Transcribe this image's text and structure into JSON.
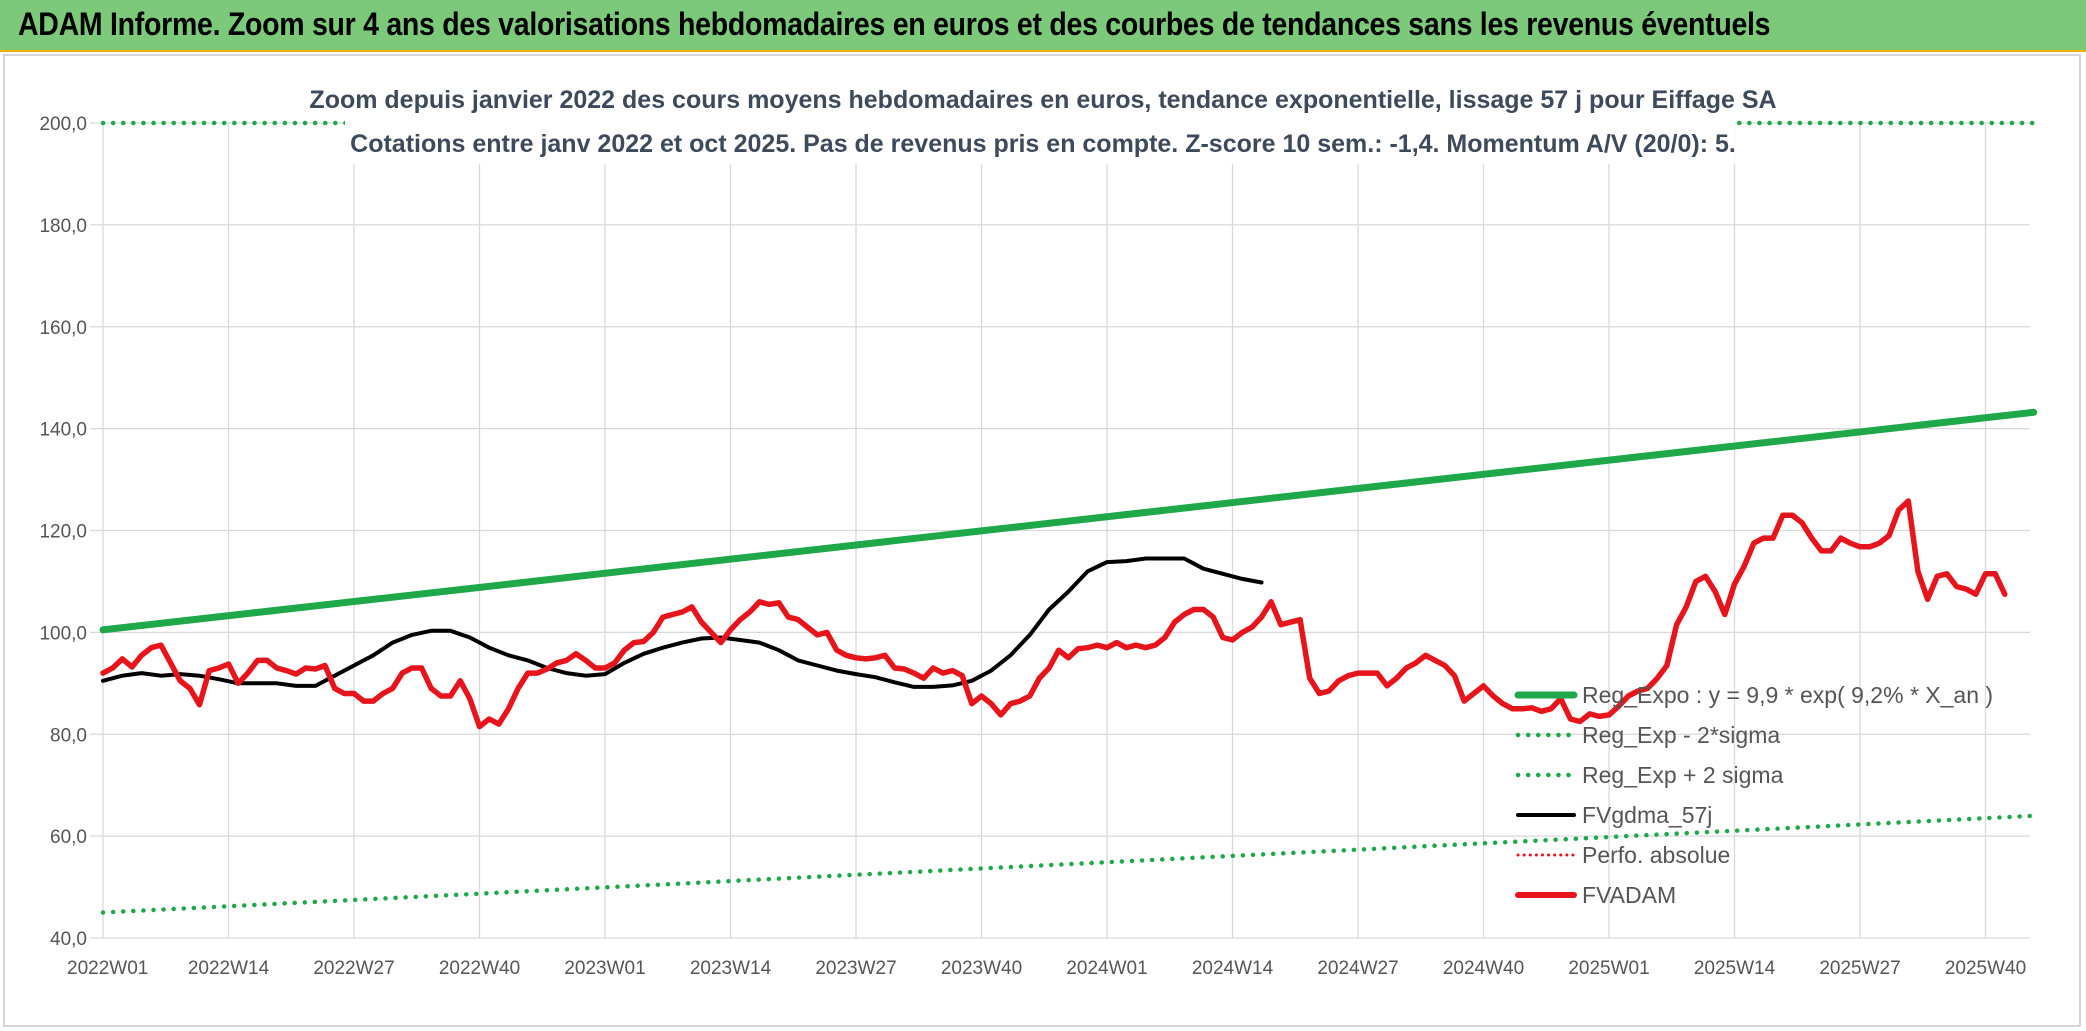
{
  "header": {
    "title": "ADAM Informe. Zoom sur 4 ans des valorisations hebdomadaires en euros et des courbes de tendances sans les revenus éventuels"
  },
  "chart_data": {
    "type": "line",
    "subtitle_lines": [
      "Zoom depuis janvier 2022 des cours moyens hebdomadaires en euros, tendance exponentielle, lissage 57 j pour Eiffage SA",
      "Cotations entre janv 2022 et oct 2025. Pas de revenus pris en compte. Z-score 10 sem.: -1,4. Momentum A/V (20/0): 5."
    ],
    "ylim": [
      40,
      200
    ],
    "ytick_values": [
      40,
      60,
      80,
      100,
      120,
      140,
      160,
      180,
      200
    ],
    "ytick_labels": [
      "40,0",
      "60,0",
      "80,0",
      "100,0",
      "120,0",
      "140,0",
      "160,0",
      "180,0",
      "200,0"
    ],
    "xtick_labels": [
      "2022W01",
      "2022W14",
      "2022W27",
      "2022W40",
      "2023W01",
      "2023W14",
      "2023W27",
      "2023W40",
      "2024W01",
      "2024W14",
      "2024W27",
      "2024W40",
      "2025W01",
      "2025W14",
      "2025W27",
      "2025W40"
    ],
    "xtick_weeks": [
      0,
      13,
      26,
      39,
      52,
      65,
      78,
      91,
      104,
      117,
      130,
      143,
      156,
      169,
      182,
      195
    ],
    "x_range_weeks": [
      0,
      200
    ],
    "grid": true,
    "legend_position": "bottom-right",
    "series": [
      {
        "name": "Reg_Expo : y = 9,9 * exp( 9,2% *  X_an )",
        "color": "#1fa84a",
        "style": "solid",
        "start": [
          0,
          100.5
        ],
        "end": [
          200,
          143.2
        ]
      },
      {
        "name": "Reg_Exp - 2*sigma",
        "color": "#1fa84a",
        "style": "dotted",
        "start": [
          0,
          45.0
        ],
        "end": [
          200,
          64.0
        ]
      },
      {
        "name": "Reg_Exp + 2 sigma",
        "color": "#1fa84a",
        "style": "dotted",
        "start": [
          0,
          200.0
        ],
        "end": [
          200,
          200.0
        ]
      },
      {
        "name": "FVgdma_57j",
        "color": "#000000",
        "style": "solid",
        "points": [
          [
            0,
            90.5
          ],
          [
            4,
            91.5
          ],
          [
            8,
            92.0
          ],
          [
            12,
            91.5
          ],
          [
            16,
            91.8
          ],
          [
            20,
            91.5
          ],
          [
            24,
            90.8
          ],
          [
            28,
            90.0
          ],
          [
            32,
            90.0
          ],
          [
            36,
            90.0
          ],
          [
            40,
            89.5
          ],
          [
            44,
            89.5
          ],
          [
            48,
            91.5
          ],
          [
            52,
            93.5
          ],
          [
            56,
            95.5
          ],
          [
            60,
            98.0
          ],
          [
            64,
            99.5
          ],
          [
            68,
            100.3
          ],
          [
            72,
            100.3
          ],
          [
            76,
            99.0
          ],
          [
            80,
            97.0
          ],
          [
            84,
            95.5
          ],
          [
            88,
            94.5
          ],
          [
            92,
            93.0
          ],
          [
            96,
            92.0
          ],
          [
            100,
            91.5
          ],
          [
            104,
            91.8
          ],
          [
            108,
            94.0
          ],
          [
            112,
            95.8
          ],
          [
            116,
            97.0
          ],
          [
            120,
            98.0
          ],
          [
            124,
            98.8
          ],
          [
            128,
            99.0
          ],
          [
            132,
            98.5
          ],
          [
            136,
            98.0
          ],
          [
            140,
            96.5
          ],
          [
            144,
            94.5
          ],
          [
            148,
            93.5
          ],
          [
            152,
            92.5
          ],
          [
            156,
            91.8
          ],
          [
            160,
            91.2
          ],
          [
            164,
            90.2
          ],
          [
            168,
            89.3
          ],
          [
            172,
            89.3
          ],
          [
            176,
            89.6
          ],
          [
            180,
            90.5
          ],
          [
            184,
            92.5
          ],
          [
            188,
            95.5
          ],
          [
            192,
            99.5
          ],
          [
            196,
            104.5
          ],
          [
            200,
            108.0
          ],
          [
            204,
            112.0
          ],
          [
            208,
            113.8
          ],
          [
            212,
            114.0
          ],
          [
            216,
            114.5
          ],
          [
            220,
            114.5
          ],
          [
            224,
            114.5
          ],
          [
            228,
            112.5
          ],
          [
            232,
            111.5
          ],
          [
            236,
            110.5
          ],
          [
            240,
            109.8
          ]
        ]
      },
      {
        "name": "Perfo. absolue",
        "color": "#e8141c",
        "style": "dotted",
        "points": []
      },
      {
        "name": "FVADAM",
        "color": "#e8141c",
        "style": "solid",
        "points": [
          [
            0,
            92.0
          ],
          [
            2,
            93.0
          ],
          [
            4,
            94.8
          ],
          [
            6,
            93.2
          ],
          [
            8,
            95.5
          ],
          [
            10,
            97.0
          ],
          [
            12,
            97.5
          ],
          [
            14,
            94.0
          ],
          [
            16,
            90.5
          ],
          [
            18,
            89.0
          ],
          [
            20,
            85.8
          ],
          [
            22,
            92.5
          ],
          [
            24,
            93.0
          ],
          [
            26,
            93.8
          ],
          [
            28,
            90.0
          ],
          [
            30,
            92.0
          ],
          [
            32,
            94.5
          ],
          [
            34,
            94.5
          ],
          [
            36,
            93.0
          ],
          [
            38,
            92.5
          ],
          [
            40,
            91.8
          ],
          [
            42,
            93.0
          ],
          [
            44,
            92.8
          ],
          [
            46,
            93.5
          ],
          [
            48,
            89.0
          ],
          [
            50,
            88.0
          ],
          [
            52,
            88.0
          ],
          [
            54,
            86.5
          ],
          [
            56,
            86.5
          ],
          [
            58,
            88.0
          ],
          [
            60,
            89.0
          ],
          [
            62,
            92.0
          ],
          [
            64,
            93.0
          ],
          [
            66,
            93.0
          ],
          [
            68,
            89.0
          ],
          [
            70,
            87.5
          ],
          [
            72,
            87.5
          ],
          [
            74,
            90.5
          ],
          [
            76,
            87.0
          ],
          [
            78,
            81.5
          ],
          [
            80,
            83.0
          ],
          [
            82,
            82.0
          ],
          [
            84,
            85.0
          ],
          [
            86,
            89.0
          ],
          [
            88,
            92.0
          ],
          [
            90,
            92.0
          ],
          [
            92,
            92.8
          ],
          [
            94,
            94.0
          ],
          [
            96,
            94.5
          ],
          [
            98,
            95.8
          ],
          [
            100,
            94.5
          ],
          [
            102,
            93.0
          ],
          [
            104,
            93.0
          ],
          [
            106,
            94.0
          ],
          [
            108,
            96.5
          ],
          [
            110,
            98.0
          ],
          [
            112,
            98.2
          ],
          [
            114,
            100.0
          ],
          [
            116,
            103.0
          ],
          [
            118,
            103.5
          ],
          [
            120,
            104.0
          ],
          [
            122,
            105.0
          ],
          [
            124,
            102.0
          ],
          [
            126,
            100.0
          ],
          [
            128,
            98.0
          ],
          [
            130,
            100.5
          ],
          [
            132,
            102.5
          ],
          [
            134,
            104.0
          ],
          [
            136,
            106.0
          ],
          [
            138,
            105.5
          ],
          [
            140,
            105.8
          ],
          [
            142,
            103.0
          ],
          [
            144,
            102.5
          ],
          [
            146,
            101.0
          ],
          [
            148,
            99.5
          ],
          [
            150,
            100.0
          ],
          [
            152,
            96.5
          ],
          [
            154,
            95.5
          ],
          [
            156,
            95.0
          ],
          [
            158,
            94.8
          ],
          [
            160,
            95.0
          ],
          [
            162,
            95.5
          ],
          [
            164,
            93.0
          ],
          [
            166,
            92.8
          ],
          [
            168,
            92.0
          ],
          [
            170,
            91.0
          ],
          [
            172,
            93.0
          ],
          [
            174,
            92.0
          ],
          [
            176,
            92.5
          ],
          [
            178,
            91.5
          ],
          [
            180,
            86.0
          ],
          [
            182,
            87.5
          ],
          [
            184,
            86.0
          ],
          [
            186,
            83.8
          ],
          [
            188,
            86.0
          ],
          [
            190,
            86.5
          ],
          [
            192,
            87.5
          ],
          [
            194,
            91.0
          ],
          [
            196,
            93.0
          ],
          [
            198,
            96.5
          ],
          [
            200,
            95.0
          ],
          [
            202,
            96.8
          ],
          [
            204,
            97.0
          ],
          [
            206,
            97.5
          ],
          [
            208,
            97.0
          ],
          [
            210,
            98.0
          ],
          [
            212,
            97.0
          ],
          [
            214,
            97.5
          ],
          [
            216,
            97.0
          ],
          [
            218,
            97.5
          ],
          [
            220,
            99.0
          ],
          [
            222,
            102.0
          ],
          [
            224,
            103.5
          ],
          [
            226,
            104.5
          ],
          [
            228,
            104.5
          ],
          [
            230,
            103.0
          ],
          [
            232,
            99.0
          ],
          [
            234,
            98.5
          ],
          [
            236,
            100.0
          ],
          [
            238,
            101.0
          ],
          [
            240,
            103.0
          ],
          [
            242,
            106.0
          ],
          [
            244,
            101.5
          ],
          [
            246,
            102.0
          ],
          [
            248,
            102.5
          ],
          [
            250,
            91.0
          ],
          [
            252,
            88.0
          ],
          [
            254,
            88.5
          ],
          [
            256,
            90.5
          ],
          [
            258,
            91.5
          ],
          [
            260,
            92.0
          ],
          [
            262,
            92.0
          ],
          [
            264,
            92.0
          ],
          [
            266,
            89.5
          ],
          [
            268,
            91.0
          ],
          [
            270,
            93.0
          ],
          [
            272,
            94.0
          ],
          [
            274,
            95.5
          ],
          [
            276,
            94.5
          ],
          [
            278,
            93.5
          ],
          [
            280,
            91.5
          ],
          [
            282,
            86.5
          ],
          [
            284,
            88.0
          ],
          [
            286,
            89.5
          ],
          [
            288,
            87.5
          ],
          [
            290,
            86.0
          ],
          [
            292,
            85.0
          ],
          [
            294,
            85.0
          ],
          [
            296,
            85.2
          ],
          [
            298,
            84.5
          ],
          [
            300,
            85.0
          ],
          [
            302,
            87.0
          ],
          [
            304,
            83.0
          ],
          [
            306,
            82.5
          ],
          [
            308,
            84.0
          ],
          [
            310,
            83.5
          ],
          [
            312,
            83.8
          ],
          [
            314,
            85.5
          ],
          [
            316,
            87.5
          ],
          [
            318,
            88.5
          ],
          [
            320,
            89.0
          ],
          [
            322,
            91.0
          ],
          [
            324,
            93.5
          ],
          [
            326,
            101.5
          ],
          [
            328,
            105.0
          ],
          [
            330,
            110.0
          ],
          [
            332,
            111.0
          ],
          [
            334,
            108.0
          ],
          [
            336,
            103.5
          ],
          [
            338,
            109.5
          ],
          [
            340,
            113.0
          ],
          [
            342,
            117.5
          ],
          [
            344,
            118.5
          ],
          [
            346,
            118.5
          ],
          [
            348,
            123.0
          ],
          [
            350,
            123.0
          ],
          [
            352,
            121.5
          ],
          [
            354,
            118.5
          ],
          [
            356,
            116.0
          ],
          [
            358,
            116.0
          ],
          [
            360,
            118.5
          ],
          [
            362,
            117.5
          ],
          [
            364,
            116.8
          ],
          [
            366,
            116.8
          ],
          [
            368,
            117.5
          ],
          [
            370,
            119.0
          ],
          [
            372,
            124.0
          ],
          [
            374,
            125.8
          ],
          [
            376,
            112.0
          ],
          [
            378,
            106.5
          ],
          [
            380,
            111.0
          ],
          [
            382,
            111.5
          ],
          [
            384,
            109.0
          ],
          [
            386,
            108.5
          ],
          [
            388,
            107.5
          ],
          [
            390,
            111.5
          ],
          [
            392,
            111.5
          ],
          [
            394,
            107.5
          ]
        ]
      }
    ]
  }
}
